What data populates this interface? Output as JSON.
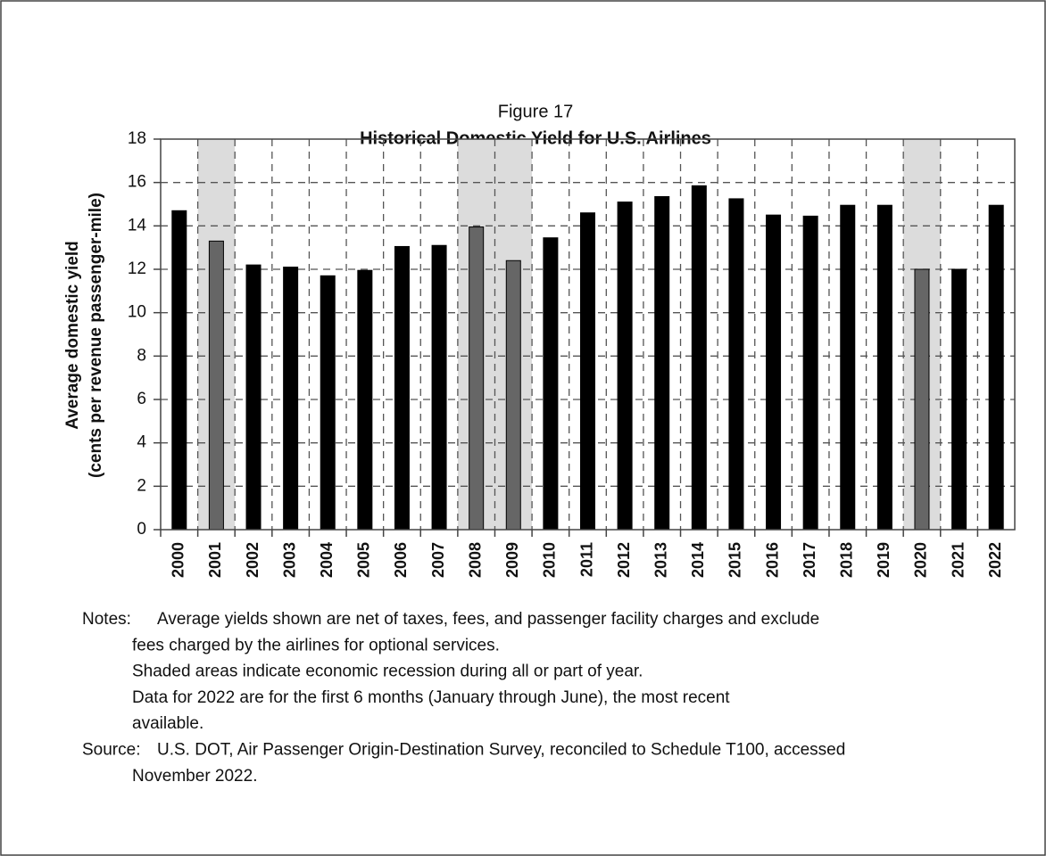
{
  "chart_data": {
    "type": "bar",
    "figure_label": "Figure 17",
    "title": "Historical Domestic Yield for U.S. Airlines",
    "y_label": [
      "Average domestic yield",
      "(cents per revenue passenger-mile)"
    ],
    "categories": [
      "2000",
      "2001",
      "2002",
      "2003",
      "2004",
      "2005",
      "2006",
      "2007",
      "2008",
      "2009",
      "2010",
      "2011",
      "2012",
      "2013",
      "2014",
      "2015",
      "2016",
      "2017",
      "2018",
      "2019",
      "2020",
      "2021",
      "2022"
    ],
    "values": [
      14.7,
      13.3,
      12.2,
      12.1,
      11.7,
      11.95,
      13.05,
      13.1,
      13.95,
      12.4,
      13.45,
      14.6,
      15.1,
      15.35,
      15.85,
      15.25,
      14.5,
      14.45,
      14.95,
      14.95,
      12.0,
      12.0,
      14.95
    ],
    "color": "#000000",
    "shaded_indices": [
      1,
      8,
      9,
      20
    ],
    "shaded_bar_color": "#666666",
    "shade_color": "#dcdcdc",
    "ylim": [
      0,
      18
    ],
    "yticks": [
      0,
      2,
      4,
      6,
      8,
      10,
      12,
      14,
      16,
      18
    ],
    "grid": true,
    "notes_label": "Notes:",
    "notes": [
      [
        "Average yields shown are net of taxes, fees, and passenger facility charges and exclude",
        "fees charged by the airlines for optional services."
      ],
      [
        "Shaded areas indicate economic recession during all or part of year."
      ],
      [
        "Data for 2022 are for the first 6 months (January through June), the most recent",
        "available."
      ]
    ],
    "source_label": "Source:",
    "source": [
      "U.S. DOT, Air Passenger Origin-Destination Survey, reconciled to Schedule T100, accessed",
      "November 2022."
    ]
  }
}
